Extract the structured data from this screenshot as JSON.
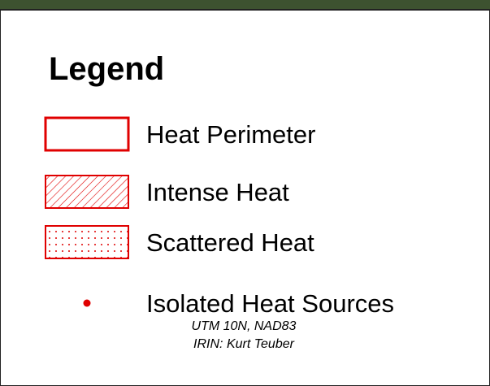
{
  "legend": {
    "title": "Legend",
    "items": [
      {
        "label": "Heat Perimeter",
        "symbol": "outline"
      },
      {
        "label": "Intense Heat",
        "symbol": "hatch"
      },
      {
        "label": "Scattered Heat",
        "symbol": "dots"
      },
      {
        "label": "Isolated Heat Sources",
        "symbol": "point"
      }
    ],
    "footer": [
      "UTM 10N, NAD83",
      "IRIN: Kurt Teuber"
    ]
  }
}
